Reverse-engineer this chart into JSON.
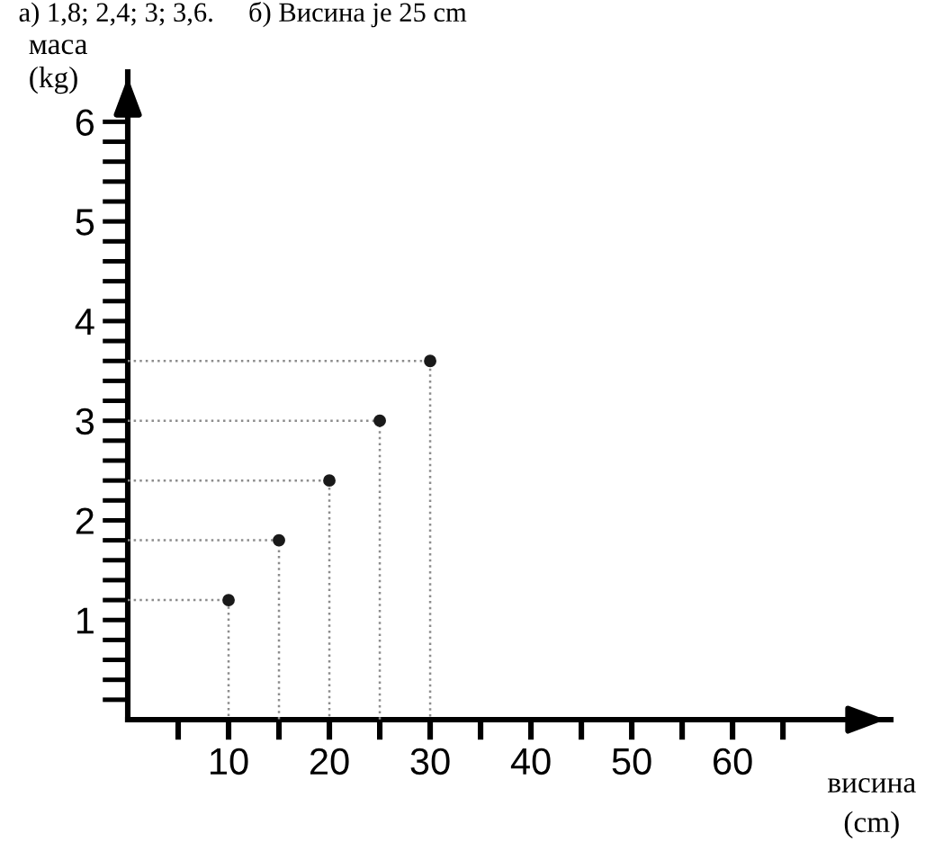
{
  "chart_data": {
    "type": "scatter",
    "xlabel": "висина\n(cm)",
    "ylabel": "маса\n(kg)",
    "annotations": [
      "а) 1,8; 2,4; 3; 3,6.     б) Висина је 25 cm"
    ],
    "x": [
      10,
      15,
      20,
      25,
      30
    ],
    "series": [
      {
        "type": "scatter",
        "color": "#1a1a1a",
        "marker": "circle",
        "values": [
          1.2,
          1.8,
          2.4,
          3,
          3.6
        ]
      },
      {
        "type": "line",
        "color": "#8c8c8c",
        "line_style": "dotted",
        "marker": "none",
        "x": [
          0,
          10,
          10
        ],
        "values": [
          1.2,
          1.2,
          0
        ]
      },
      {
        "type": "line",
        "color": "#8c8c8c",
        "line_style": "dotted",
        "marker": "none",
        "x": [
          0,
          15,
          15
        ],
        "values": [
          1.8,
          1.8,
          0
        ]
      },
      {
        "type": "line",
        "color": "#8c8c8c",
        "line_style": "dotted",
        "marker": "none",
        "x": [
          0,
          20,
          20
        ],
        "values": [
          2.4,
          2.4,
          0
        ]
      },
      {
        "type": "line",
        "color": "#8c8c8c",
        "line_style": "dotted",
        "marker": "none",
        "x": [
          0,
          25,
          25
        ],
        "values": [
          3,
          3,
          0
        ]
      },
      {
        "type": "line",
        "color": "#8c8c8c",
        "line_style": "dotted",
        "marker": "none",
        "x": [
          0,
          30,
          30
        ],
        "values": [
          3.6,
          3.6,
          0
        ]
      }
    ],
    "xlim": [
      0,
      75.7
    ],
    "ylim": [
      0,
      6.5
    ],
    "xticks": [
      {
        "value": 5,
        "label": null
      },
      10,
      {
        "value": 15,
        "label": null
      },
      20,
      {
        "value": 25,
        "label": null
      },
      30,
      {
        "value": 35,
        "label": null
      },
      40,
      {
        "value": 45,
        "label": null
      },
      50,
      {
        "value": 55,
        "label": null
      },
      60,
      {
        "value": 65,
        "label": null
      }
    ],
    "yticks": [
      {
        "value": 0.2,
        "label": null
      },
      {
        "value": 0.4,
        "label": null
      },
      {
        "value": 0.6,
        "label": null
      },
      {
        "value": 0.8,
        "label": null
      },
      1,
      {
        "value": 1.2,
        "label": null
      },
      {
        "value": 1.4,
        "label": null
      },
      {
        "value": 1.6,
        "label": null
      },
      {
        "value": 1.8,
        "label": null
      },
      2,
      {
        "value": 2.2,
        "label": null
      },
      {
        "value": 2.4,
        "label": null
      },
      {
        "value": 2.6,
        "label": null
      },
      {
        "value": 2.8,
        "label": null
      },
      3,
      {
        "value": 3.2,
        "label": null
      },
      {
        "value": 3.4,
        "label": null
      },
      {
        "value": 3.6,
        "label": null
      },
      {
        "value": 3.8,
        "label": null
      },
      4,
      {
        "value": 4.2,
        "label": null
      },
      {
        "value": 4.4,
        "label": null
      },
      {
        "value": 4.6,
        "label": null
      },
      {
        "value": 4.8,
        "label": null
      },
      5,
      {
        "value": 5.2,
        "label": null
      },
      {
        "value": 5.4,
        "label": null
      },
      {
        "value": 5.6,
        "label": null
      },
      {
        "value": 5.8,
        "label": null
      },
      6
    ],
    "grid": false
  }
}
